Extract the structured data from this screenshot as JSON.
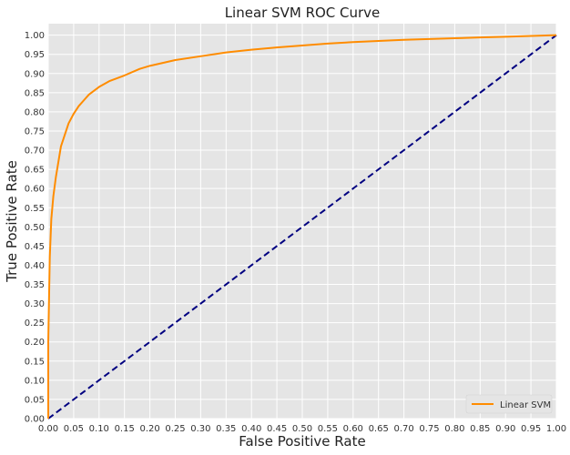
{
  "chart_data": {
    "type": "line",
    "title": "Linear SVM ROC Curve",
    "xlabel": "False Positive Rate",
    "ylabel": "True Positive Rate",
    "xlim": [
      0,
      1
    ],
    "ylim": [
      0,
      1.03
    ],
    "xticks": [
      "0.00",
      "0.05",
      "0.10",
      "0.15",
      "0.20",
      "0.25",
      "0.30",
      "0.35",
      "0.40",
      "0.45",
      "0.50",
      "0.55",
      "0.60",
      "0.65",
      "0.70",
      "0.75",
      "0.80",
      "0.85",
      "0.90",
      "0.95",
      "1.00"
    ],
    "yticks": [
      "0.00",
      "0.05",
      "0.10",
      "0.15",
      "0.20",
      "0.25",
      "0.30",
      "0.35",
      "0.40",
      "0.45",
      "0.50",
      "0.55",
      "0.60",
      "0.65",
      "0.70",
      "0.75",
      "0.80",
      "0.85",
      "0.90",
      "0.95",
      "1.00"
    ],
    "grid": true,
    "legend_position": "bottom-right",
    "series": [
      {
        "name": "Linear SVM",
        "color": "#ff8c00",
        "style": "solid",
        "x": [
          0.0,
          0.0,
          0.003,
          0.006,
          0.01,
          0.015,
          0.02,
          0.025,
          0.03,
          0.04,
          0.05,
          0.06,
          0.07,
          0.08,
          0.1,
          0.12,
          0.15,
          0.18,
          0.2,
          0.25,
          0.3,
          0.35,
          0.4,
          0.45,
          0.5,
          0.55,
          0.6,
          0.65,
          0.7,
          0.75,
          0.8,
          0.85,
          0.9,
          0.95,
          1.0
        ],
        "y": [
          0.0,
          0.2,
          0.42,
          0.52,
          0.58,
          0.63,
          0.67,
          0.71,
          0.73,
          0.77,
          0.795,
          0.815,
          0.83,
          0.845,
          0.865,
          0.88,
          0.895,
          0.912,
          0.92,
          0.935,
          0.945,
          0.955,
          0.962,
          0.968,
          0.973,
          0.978,
          0.982,
          0.985,
          0.988,
          0.99,
          0.992,
          0.994,
          0.996,
          0.998,
          1.0
        ]
      },
      {
        "name": "",
        "color": "#000080",
        "style": "dashed",
        "x": [
          0,
          1
        ],
        "y": [
          0,
          1
        ]
      }
    ]
  }
}
